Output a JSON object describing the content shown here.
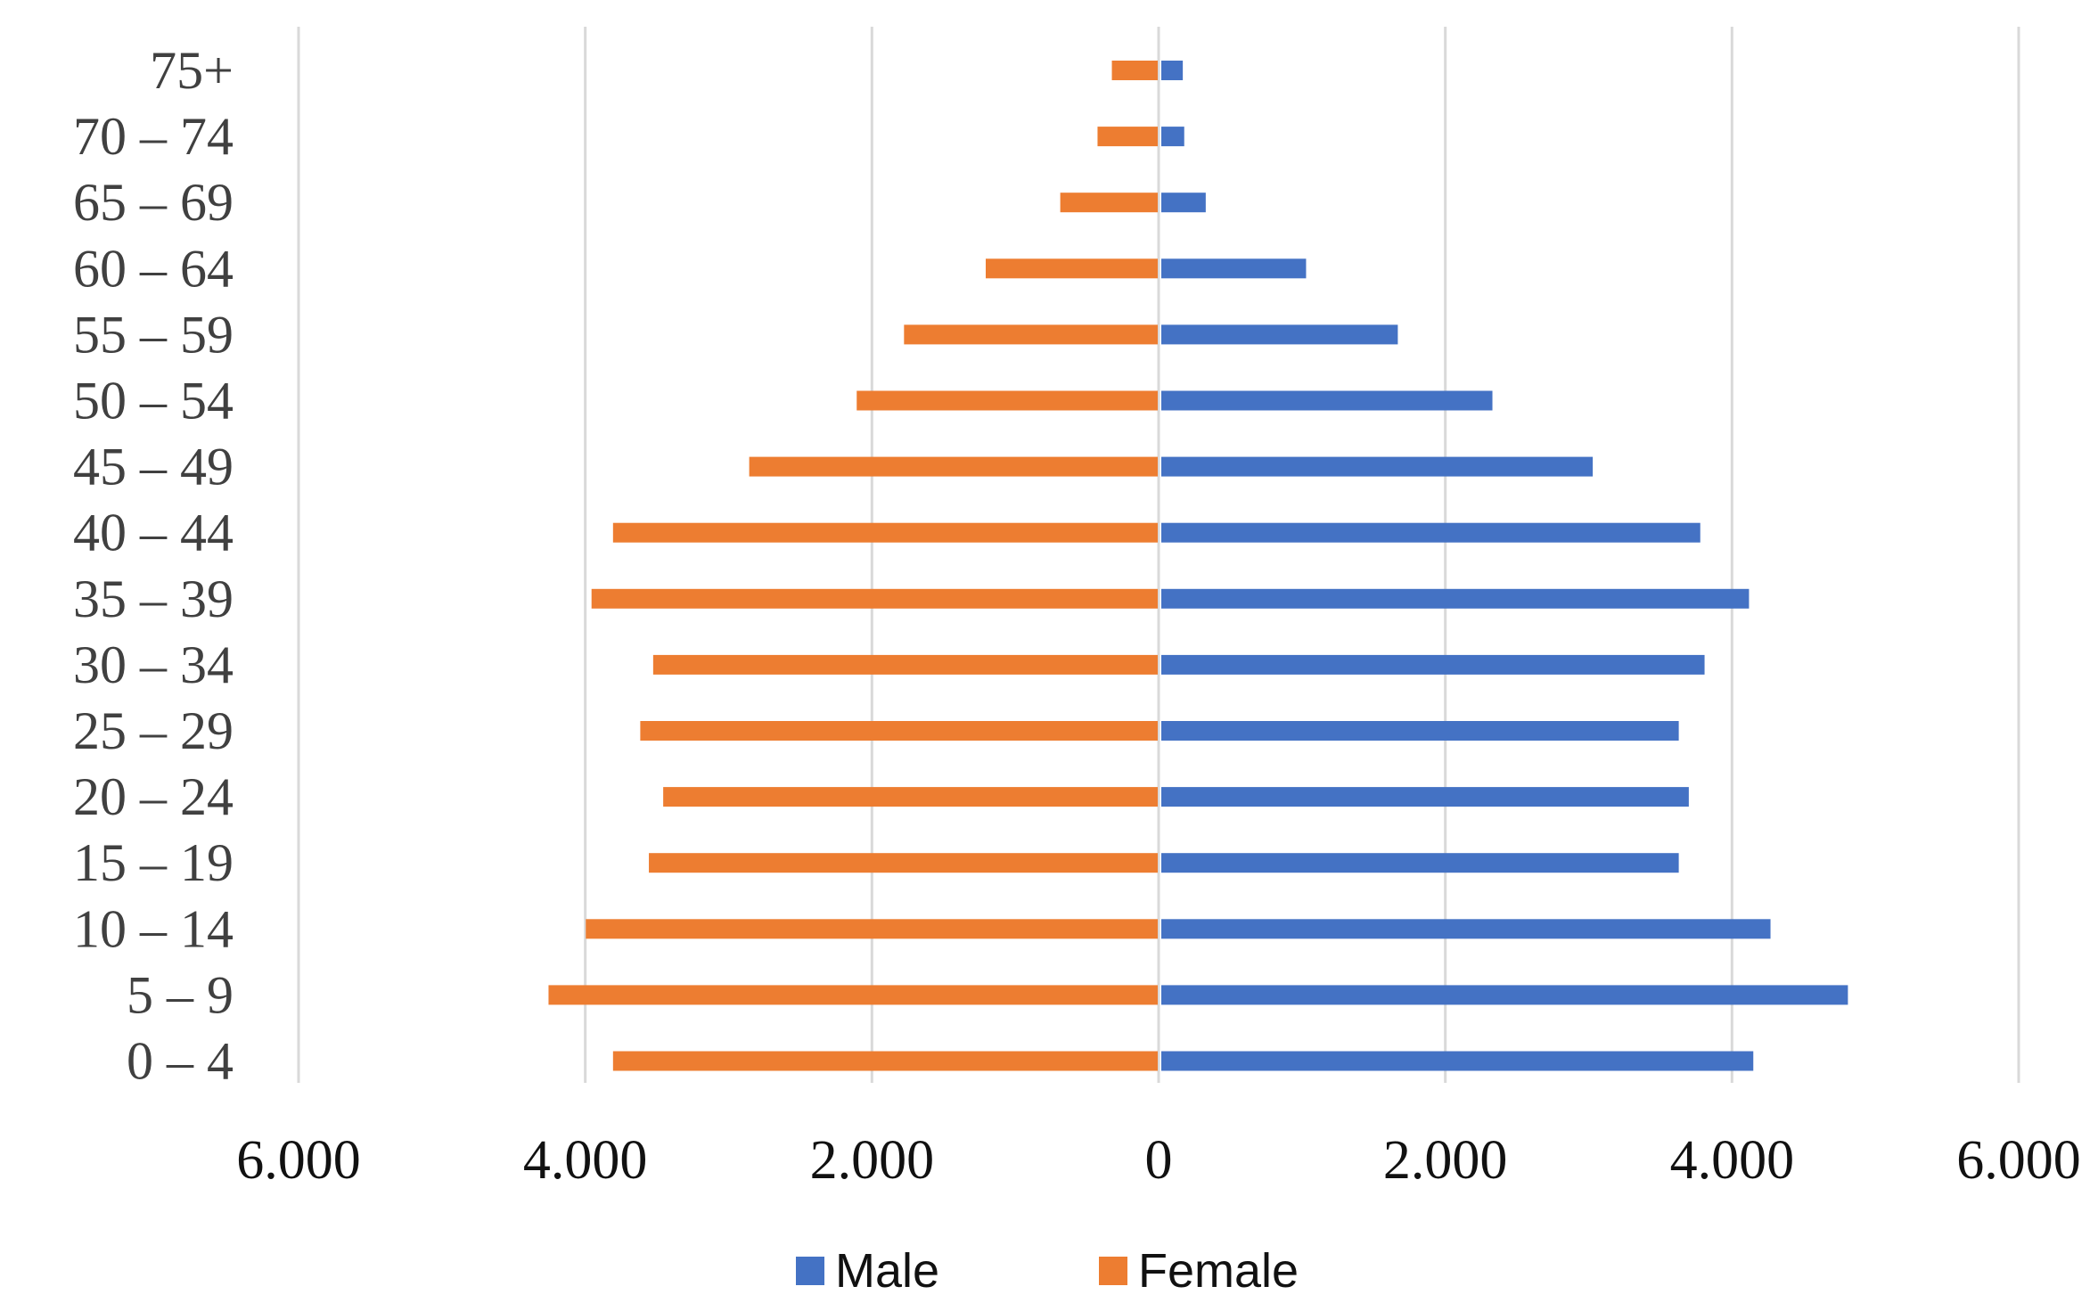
{
  "chart_data": {
    "type": "bar",
    "orientation": "horizontal",
    "subtype": "population-pyramid",
    "title": "",
    "xlabel": "",
    "ylabel": "",
    "categories": [
      "75+",
      "70 – 74",
      "65 – 69",
      "60 – 64",
      "55 – 59",
      "50 – 54",
      "45 – 49",
      "40 – 44",
      "35 – 39",
      "30 – 34",
      "25 – 29",
      "20 – 24",
      "15 – 19",
      "10 – 14",
      "5 – 9",
      "0 – 4"
    ],
    "series": [
      {
        "name": "Male",
        "color": "#4472C4",
        "values": [
          150,
          160,
          310,
          1010,
          1650,
          2310,
          3010,
          3760,
          4100,
          3790,
          3610,
          3680,
          3610,
          4250,
          4790,
          4130
        ]
      },
      {
        "name": "Female",
        "color": "#ED7D31",
        "values": [
          320,
          420,
          680,
          1200,
          1770,
          2100,
          2850,
          3800,
          3950,
          3520,
          3610,
          3450,
          3550,
          3990,
          4250,
          3800
        ]
      }
    ],
    "xlim": [
      -6000,
      6000
    ],
    "x_ticks": [
      -6000,
      -4000,
      -2000,
      0,
      2000,
      4000,
      6000
    ],
    "x_tick_labels": [
      "6.000",
      "4.000",
      "2.000",
      "0",
      "2.000",
      "4.000",
      "6.000"
    ],
    "grid": true,
    "legend": {
      "position": "bottom",
      "entries": [
        "Male",
        "Female"
      ]
    }
  }
}
